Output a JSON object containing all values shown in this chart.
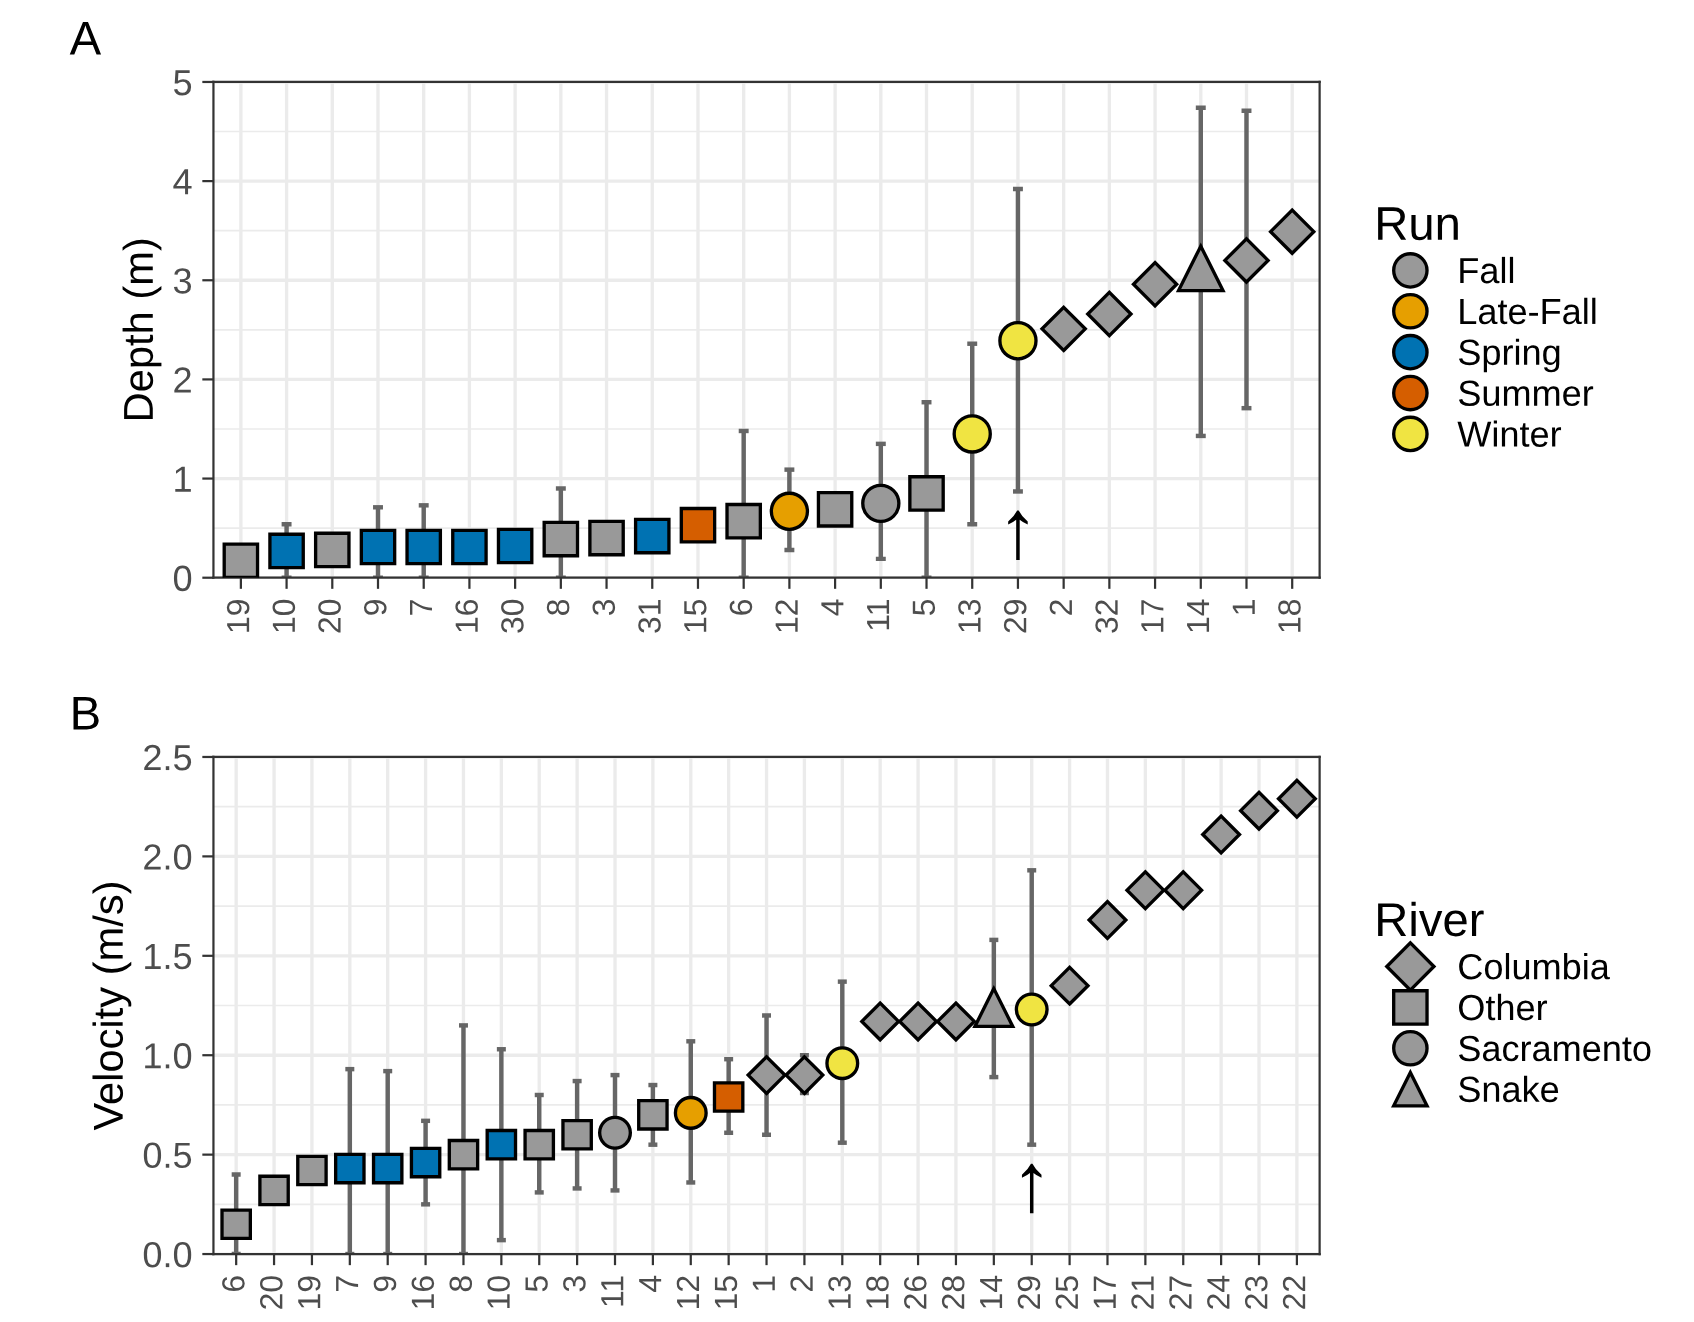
{
  "chart_data": [
    {
      "type": "scatter",
      "title": "A",
      "ylabel": "Depth (m)",
      "legend_title": "Run",
      "legend": "right",
      "grid": true,
      "categories": [
        "19",
        "10",
        "20",
        "9",
        "7",
        "16",
        "30",
        "8",
        "3",
        "31",
        "15",
        "6",
        "12",
        "4",
        "11",
        "5",
        "13",
        "29",
        "2",
        "32",
        "17",
        "14",
        "1",
        "18"
      ],
      "ylim": [
        0,
        5
      ],
      "yticks": [
        0,
        1,
        2,
        3,
        4,
        5
      ],
      "series": [
        {
          "name": "Fall",
          "color": "#999999",
          "x": [
            "19",
            "20",
            "8",
            "3",
            "6",
            "4",
            "11",
            "5",
            "2",
            "32",
            "17",
            "14",
            "1",
            "18"
          ],
          "values": [
            0.17,
            0.28,
            0.39,
            0.4,
            0.57,
            0.69,
            0.75,
            0.85,
            2.51,
            2.66,
            2.96,
            3.12,
            3.2,
            3.49
          ],
          "marker": [
            "square",
            "square",
            "square",
            "square",
            "square",
            "square",
            "circle",
            "square",
            "diamond",
            "diamond",
            "diamond",
            "triangle",
            "diamond",
            "diamond"
          ],
          "errors": [
            null,
            null,
            [
              0,
              0.9
            ],
            null,
            [
              0,
              1.48
            ],
            null,
            [
              0.19,
              1.35
            ],
            [
              0,
              1.77
            ],
            null,
            null,
            null,
            [
              1.43,
              4.74
            ],
            [
              1.71,
              4.71
            ],
            null
          ]
        },
        {
          "name": "Late-Fall",
          "color": "#e69f00",
          "x": [
            "12"
          ],
          "values": [
            0.67
          ],
          "marker": [
            "circle"
          ],
          "errors": [
            [
              0.28,
              1.09
            ]
          ]
        },
        {
          "name": "Spring",
          "color": "#0072b2",
          "x": [
            "10",
            "9",
            "7",
            "16",
            "30",
            "31"
          ],
          "values": [
            0.27,
            0.31,
            0.31,
            0.31,
            0.32,
            0.42
          ],
          "marker": [
            "square",
            "square",
            "square",
            "square",
            "square",
            "square"
          ],
          "errors": [
            [
              0,
              0.54
            ],
            [
              0,
              0.71
            ],
            [
              0,
              0.73
            ],
            null,
            null,
            null
          ]
        },
        {
          "name": "Summer",
          "color": "#d55e00",
          "x": [
            "15"
          ],
          "values": [
            0.53
          ],
          "marker": [
            "square"
          ],
          "errors": [
            null
          ]
        },
        {
          "name": "Winter",
          "color": "#f0e442",
          "x": [
            "13",
            "29"
          ],
          "values": [
            1.45,
            2.39
          ],
          "marker": [
            "circle",
            "circle"
          ],
          "errors": [
            [
              0.54,
              2.36
            ],
            [
              0.87,
              3.92
            ]
          ]
        }
      ],
      "annotations": [
        {
          "text": "↑",
          "x": "29",
          "y": 0.87
        }
      ]
    },
    {
      "type": "scatter",
      "title": "B",
      "ylabel": "Velocity (m/s)",
      "legend_title": "River",
      "legend": "right",
      "grid": true,
      "categories": [
        "6",
        "20",
        "19",
        "7",
        "9",
        "16",
        "8",
        "10",
        "5",
        "3",
        "11",
        "4",
        "12",
        "15",
        "1",
        "2",
        "13",
        "18",
        "26",
        "28",
        "14",
        "29",
        "25",
        "17",
        "21",
        "27",
        "24",
        "23",
        "22"
      ],
      "ylim": [
        0,
        2.5
      ],
      "yticks": [
        {
          "value": 0,
          "label": "0.0"
        },
        {
          "value": 0.5,
          "label": "0.5"
        },
        {
          "value": 1,
          "label": "1.0"
        },
        {
          "value": 1.5,
          "label": "1.5"
        },
        {
          "value": 2,
          "label": "2.0"
        },
        {
          "value": 2.5,
          "label": "2.5"
        }
      ],
      "series": [
        {
          "name": "Columbia",
          "marker": "diamond",
          "x": [
            "1",
            "2",
            "18",
            "26",
            "28",
            "25",
            "17",
            "21",
            "27",
            "24",
            "23",
            "22"
          ],
          "values": [
            0.9,
            0.9,
            1.17,
            1.17,
            1.17,
            1.35,
            1.68,
            1.83,
            1.83,
            2.11,
            2.23,
            2.29
          ],
          "colors": [
            "#999999",
            "#999999",
            "#999999",
            "#999999",
            "#999999",
            "#999999",
            "#999999",
            "#999999",
            "#999999",
            "#999999",
            "#999999",
            "#999999"
          ],
          "errors": [
            [
              0.6,
              1.2
            ],
            [
              0.81,
              1.0
            ],
            null,
            null,
            null,
            null,
            null,
            null,
            null,
            null,
            null,
            null
          ]
        },
        {
          "name": "Other",
          "marker": "square",
          "x": [
            "6",
            "20",
            "19",
            "7",
            "9",
            "16",
            "8",
            "10",
            "5",
            "3",
            "4",
            "15"
          ],
          "values": [
            0.15,
            0.32,
            0.42,
            0.43,
            0.43,
            0.46,
            0.5,
            0.55,
            0.55,
            0.6,
            0.7,
            0.79
          ],
          "colors": [
            "#999999",
            "#999999",
            "#999999",
            "#0072b2",
            "#0072b2",
            "#0072b2",
            "#999999",
            "#0072b2",
            "#999999",
            "#999999",
            "#999999",
            "#d55e00"
          ],
          "errors": [
            [
              0,
              0.4
            ],
            null,
            null,
            [
              0,
              0.93
            ],
            [
              0,
              0.92
            ],
            [
              0.25,
              0.67
            ],
            [
              0,
              1.15
            ],
            [
              0.07,
              1.03
            ],
            [
              0.31,
              0.8
            ],
            [
              0.33,
              0.87
            ],
            [
              0.55,
              0.85
            ],
            [
              0.61,
              0.98
            ]
          ]
        },
        {
          "name": "Sacramento",
          "marker": "circle",
          "x": [
            "11",
            "12",
            "13",
            "29"
          ],
          "values": [
            0.61,
            0.71,
            0.96,
            1.23
          ],
          "colors": [
            "#999999",
            "#e69f00",
            "#f0e442",
            "#f0e442"
          ],
          "errors": [
            [
              0.32,
              0.9
            ],
            [
              0.36,
              1.07
            ],
            [
              0.56,
              1.37
            ],
            [
              0.55,
              1.93
            ]
          ]
        },
        {
          "name": "Snake",
          "marker": "triangle",
          "x": [
            "14"
          ],
          "values": [
            1.24
          ],
          "colors": [
            "#999999"
          ],
          "errors": [
            [
              0.89,
              1.58
            ]
          ]
        }
      ],
      "annotations": [
        {
          "text": "↑",
          "x": "29",
          "y": 0.55
        }
      ]
    }
  ]
}
